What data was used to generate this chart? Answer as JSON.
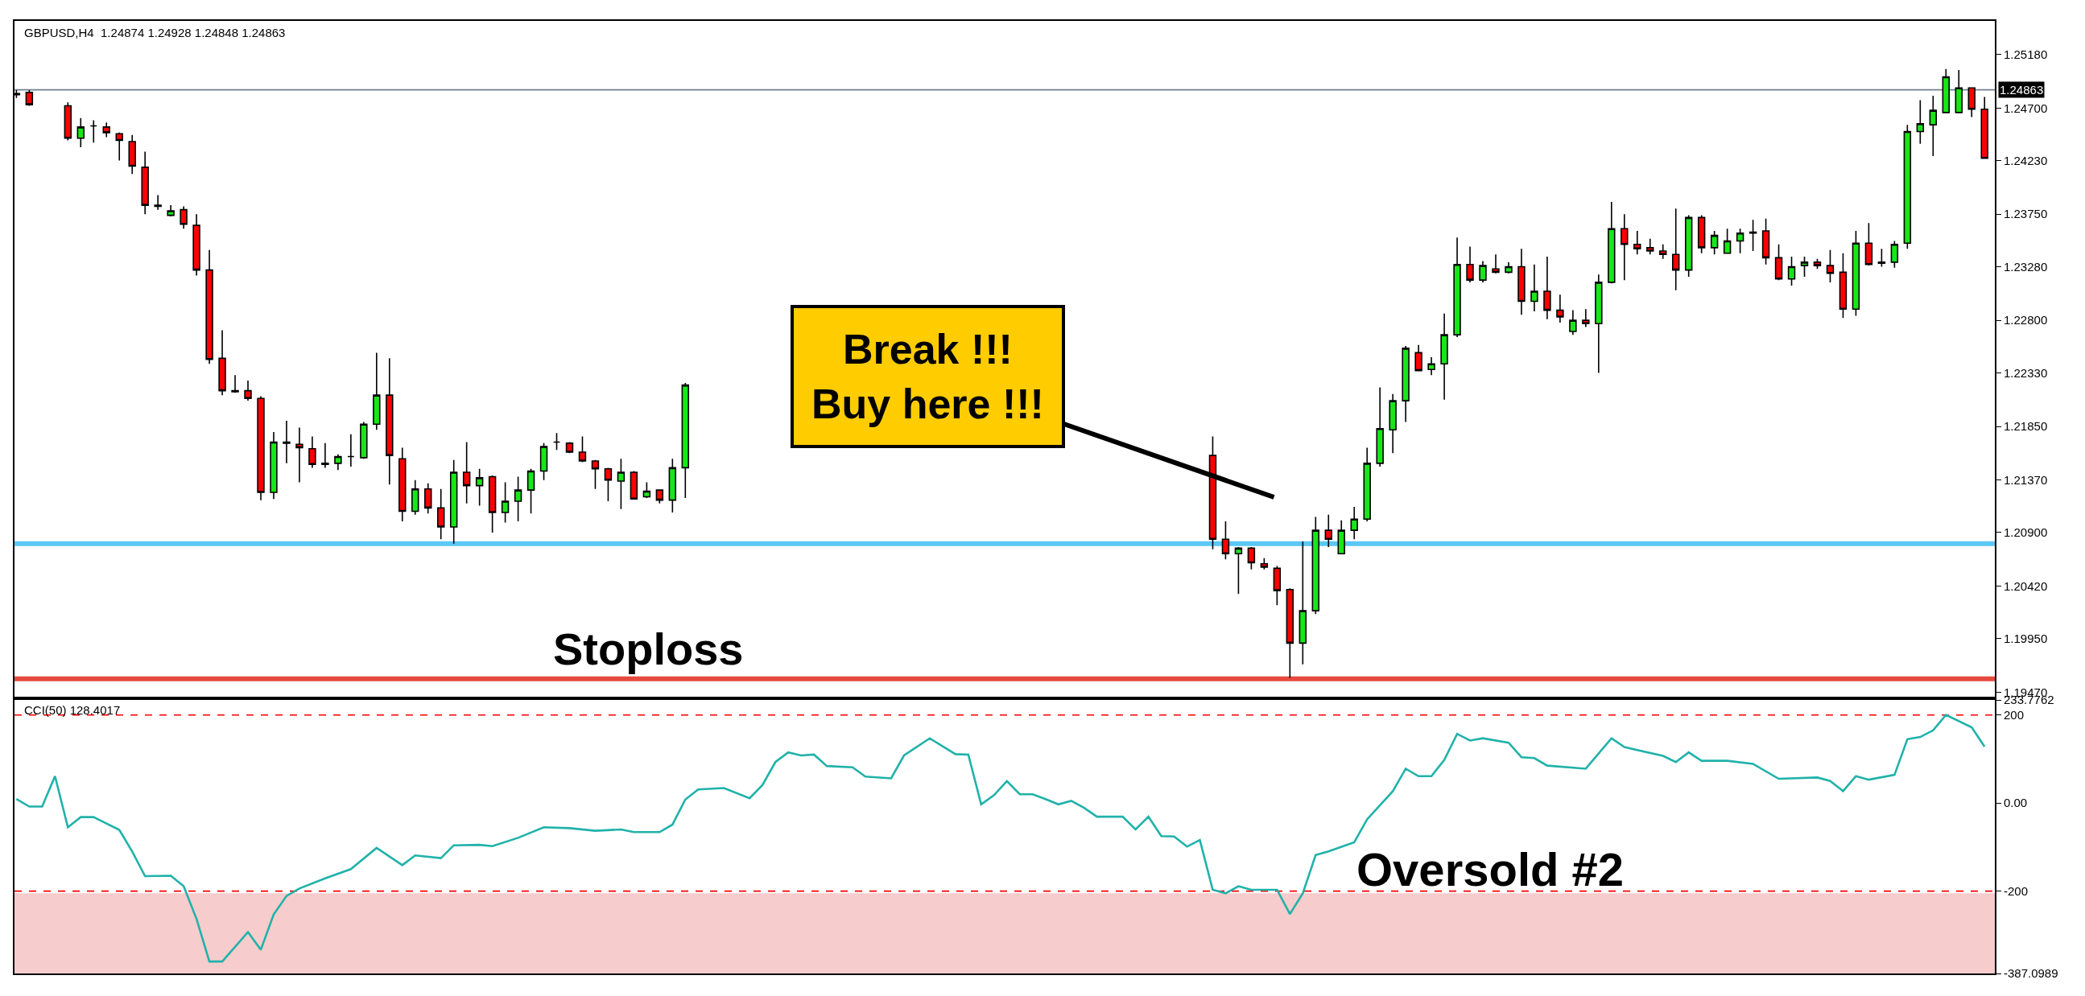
{
  "chart_data": [
    {
      "type": "candlestick",
      "title": "GBPUSD,H4  1.24874 1.24928 1.24848 1.24863",
      "categories": [
        null,
        null,
        null,
        null,
        null,
        null,
        null,
        null,
        null,
        null,
        null,
        null,
        null,
        null,
        null,
        null,
        null,
        null,
        null,
        null,
        null,
        null,
        null,
        null,
        null,
        null,
        null,
        null,
        null,
        null,
        null,
        null,
        null,
        null,
        null,
        null,
        null,
        null,
        null,
        null,
        null,
        null,
        null,
        null,
        null,
        null,
        null,
        null,
        null,
        null,
        null,
        null,
        null,
        null,
        null,
        null,
        null,
        null,
        null,
        null,
        null,
        null,
        null,
        null,
        null,
        null,
        null,
        null,
        null,
        null,
        null,
        null,
        null,
        null,
        null,
        null,
        null,
        null,
        null,
        null,
        null,
        null,
        null,
        null,
        null,
        null,
        null,
        null,
        null,
        null,
        null,
        null,
        null,
        null,
        null,
        null,
        null,
        null,
        null,
        null,
        null,
        null,
        null,
        null,
        null,
        null,
        null,
        null,
        null,
        null,
        null,
        null,
        null,
        null,
        null,
        null,
        null,
        null,
        null,
        null,
        null,
        null,
        null,
        null,
        null,
        null,
        null,
        null,
        null,
        null,
        null,
        null,
        null,
        null,
        null,
        null,
        null,
        null,
        null,
        null,
        null,
        null,
        null,
        null,
        null,
        null,
        null,
        null,
        null,
        null,
        null,
        null,
        null,
        null
      ],
      "ohlc": [
        [
          1.2483,
          1.2486,
          1.2479,
          1.2482
        ],
        [
          1.2484,
          1.2486,
          1.2472,
          1.2473
        ],
        null,
        null,
        [
          1.2472,
          1.2475,
          1.2441,
          1.2443
        ],
        [
          1.2443,
          1.2461,
          1.2435,
          1.2453
        ],
        [
          1.2454,
          1.2459,
          1.2439,
          1.2454
        ],
        [
          1.2453,
          1.2457,
          1.2444,
          1.2448
        ],
        [
          1.2447,
          1.2448,
          1.2423,
          1.2441
        ],
        [
          1.244,
          1.2446,
          1.2411,
          1.2418
        ],
        [
          1.2417,
          1.2431,
          1.2375,
          1.2383
        ],
        [
          1.2383,
          1.2392,
          1.2379,
          1.2382
        ],
        [
          1.2374,
          1.2383,
          1.2373,
          1.2378
        ],
        [
          1.2379,
          1.2382,
          1.2362,
          1.2366
        ],
        [
          1.2365,
          1.2375,
          1.232,
          1.2325
        ],
        [
          1.2325,
          1.2343,
          1.2241,
          1.2245
        ],
        [
          1.2246,
          1.2271,
          1.2213,
          1.2217
        ],
        [
          1.2217,
          1.2231,
          1.2215,
          1.2216
        ],
        [
          1.2217,
          1.2226,
          1.2208,
          1.221
        ],
        [
          1.221,
          1.2212,
          1.2119,
          1.2126
        ],
        [
          1.2126,
          1.218,
          1.212,
          1.2171
        ],
        [
          1.2171,
          1.219,
          1.2152,
          1.217
        ],
        [
          1.2169,
          1.2184,
          1.2135,
          1.2166
        ],
        [
          1.2165,
          1.2176,
          1.2148,
          1.2151
        ],
        [
          1.2152,
          1.217,
          1.2148,
          1.2151
        ],
        [
          1.2152,
          1.216,
          1.2146,
          1.2158
        ],
        [
          1.2158,
          1.2178,
          1.2149,
          1.2158
        ],
        [
          1.2157,
          1.2189,
          1.2156,
          1.2187
        ],
        [
          1.2187,
          1.2251,
          1.2182,
          1.2213
        ],
        [
          1.2213,
          1.2246,
          1.2133,
          1.2159
        ],
        [
          1.2156,
          1.2166,
          1.21,
          1.2109
        ],
        [
          1.2109,
          1.2137,
          1.2106,
          1.2129
        ],
        [
          1.2129,
          1.2134,
          1.2107,
          1.2112
        ],
        [
          1.2112,
          1.2129,
          1.2084,
          1.2095
        ],
        [
          1.2095,
          1.2155,
          1.208,
          1.2144
        ],
        [
          1.2144,
          1.2171,
          1.2116,
          1.2132
        ],
        [
          1.2132,
          1.2147,
          1.2114,
          1.2139
        ],
        [
          1.214,
          1.2141,
          1.209,
          1.2108
        ],
        [
          1.2108,
          1.2135,
          1.2099,
          1.2118
        ],
        [
          1.2118,
          1.214,
          1.21,
          1.2128
        ],
        [
          1.2128,
          1.2147,
          1.2107,
          1.2145
        ],
        [
          1.2145,
          1.217,
          1.2137,
          1.2167
        ],
        [
          1.2171,
          1.2179,
          1.2164,
          1.2171
        ],
        [
          1.217,
          1.2171,
          1.2161,
          1.2162
        ],
        [
          1.2162,
          1.2176,
          1.2153,
          1.2154
        ],
        [
          1.2154,
          1.2155,
          1.2129,
          1.2147
        ],
        [
          1.2147,
          1.2148,
          1.2118,
          1.2137
        ],
        [
          1.2136,
          1.2156,
          1.2111,
          1.2144
        ],
        [
          1.2144,
          1.2145,
          1.212,
          1.212
        ],
        [
          1.2122,
          1.2135,
          1.2121,
          1.2127
        ],
        [
          1.2128,
          1.2128,
          1.2116,
          1.2119
        ],
        [
          1.2119,
          1.2156,
          1.2108,
          1.2148
        ],
        [
          1.2148,
          1.2224,
          1.2121,
          1.2222
        ],
        null,
        null,
        null,
        null,
        null,
        null,
        null,
        null,
        null,
        null,
        null,
        null,
        null,
        null,
        null,
        null,
        null,
        null,
        null,
        null,
        null,
        null,
        null,
        null,
        null,
        null,
        null,
        null,
        null,
        null,
        null,
        null,
        null,
        null,
        null,
        null,
        null,
        null,
        null,
        null,
        [
          1.2159,
          1.2176,
          1.2075,
          1.2084
        ],
        [
          1.2084,
          1.21,
          1.2066,
          1.2071
        ],
        [
          1.2071,
          1.2077,
          1.2035,
          1.2076
        ],
        [
          1.2076,
          1.2077,
          1.2057,
          1.2063
        ],
        [
          1.2062,
          1.2067,
          1.2057,
          1.2059
        ],
        [
          1.2058,
          1.206,
          1.2025,
          1.2038
        ],
        [
          1.2039,
          1.204,
          1.196,
          1.1991
        ],
        [
          1.1991,
          1.2082,
          1.1972,
          1.202
        ],
        [
          1.202,
          1.2104,
          1.2017,
          1.2092
        ],
        [
          1.2092,
          1.2106,
          1.2077,
          1.2084
        ],
        [
          1.2071,
          1.2101,
          1.2071,
          1.2092
        ],
        [
          1.2092,
          1.2113,
          1.2084,
          1.2102
        ],
        [
          1.2102,
          1.2166,
          1.21,
          1.2152
        ],
        [
          1.2152,
          1.222,
          1.2149,
          1.2183
        ],
        [
          1.2182,
          1.2214,
          1.2161,
          1.2208
        ],
        [
          1.2208,
          1.2257,
          1.2189,
          1.2255
        ],
        [
          1.2251,
          1.2258,
          1.2235,
          1.2235
        ],
        [
          1.2236,
          1.2247,
          1.2231,
          1.2241
        ],
        [
          1.2241,
          1.2286,
          1.2209,
          1.2267
        ],
        [
          1.2267,
          1.2354,
          1.2265,
          1.233
        ],
        [
          1.233,
          1.2346,
          1.2314,
          1.2316
        ],
        [
          1.2316,
          1.2333,
          1.2314,
          1.2329
        ],
        [
          1.2326,
          1.2339,
          1.2322,
          1.2323
        ],
        [
          1.2323,
          1.2332,
          1.2322,
          1.2328
        ],
        [
          1.2328,
          1.2344,
          1.2285,
          1.2297
        ],
        [
          1.2297,
          1.233,
          1.2288,
          1.2306
        ],
        [
          1.2306,
          1.2337,
          1.2281,
          1.2289
        ],
        [
          1.2289,
          1.2303,
          1.2278,
          1.2283
        ],
        [
          1.227,
          1.2289,
          1.2267,
          1.228
        ],
        [
          1.228,
          1.229,
          1.2274,
          1.2277
        ],
        [
          1.2277,
          1.2321,
          1.2233,
          1.2314
        ],
        [
          1.2314,
          1.2386,
          1.2313,
          1.2362
        ],
        [
          1.2362,
          1.2375,
          1.2316,
          1.2348
        ],
        [
          1.2348,
          1.236,
          1.2339,
          1.2344
        ],
        [
          1.2345,
          1.2353,
          1.2339,
          1.2342
        ],
        [
          1.2342,
          1.2348,
          1.2335,
          1.2339
        ],
        [
          1.2339,
          1.238,
          1.2307,
          1.2325
        ],
        [
          1.2325,
          1.2374,
          1.2319,
          1.2372
        ],
        [
          1.2372,
          1.2374,
          1.234,
          1.2345
        ],
        [
          1.2345,
          1.236,
          1.2339,
          1.2356
        ],
        [
          1.234,
          1.2362,
          1.234,
          1.2351
        ],
        [
          1.2351,
          1.2362,
          1.234,
          1.2358
        ],
        [
          1.2359,
          1.237,
          1.2342,
          1.2358
        ],
        [
          1.236,
          1.2371,
          1.233,
          1.2336
        ],
        [
          1.2336,
          1.2348,
          1.2316,
          1.2317
        ],
        [
          1.2317,
          1.2337,
          1.2311,
          1.2328
        ],
        [
          1.2329,
          1.2337,
          1.2319,
          1.2332
        ],
        [
          1.2332,
          1.2335,
          1.2326,
          1.2329
        ],
        [
          1.2329,
          1.2343,
          1.2314,
          1.2322
        ],
        [
          1.2323,
          1.234,
          1.2282,
          1.229
        ],
        [
          1.229,
          1.236,
          1.2284,
          1.2349
        ],
        [
          1.2349,
          1.2367,
          1.2329,
          1.233
        ],
        [
          1.2332,
          1.2344,
          1.2328,
          1.2331
        ],
        [
          1.2332,
          1.2351,
          1.2327,
          1.2348
        ],
        [
          1.2349,
          1.2455,
          1.2344,
          1.2449
        ],
        [
          1.2449,
          1.2477,
          1.2438,
          1.2456
        ],
        [
          1.2455,
          1.2481,
          1.2427,
          1.2468
        ],
        [
          1.2466,
          1.2505,
          1.2466,
          1.2498
        ],
        [
          1.2466,
          1.2504,
          1.2466,
          1.2488
        ],
        [
          1.2488,
          1.2488,
          1.2462,
          1.2469
        ],
        [
          1.2469,
          1.248,
          1.2425,
          1.2425
        ]
      ],
      "ylim": [
        1.1943,
        1.2548
      ],
      "yticks": [
        {
          "value": 1.2518,
          "label": "1.25180"
        },
        {
          "value": 1.247,
          "label": "1.24700"
        },
        {
          "value": 1.2423,
          "label": "1.24230"
        },
        {
          "value": 1.2375,
          "label": "1.23750"
        },
        {
          "value": 1.2328,
          "label": "1.23280"
        },
        {
          "value": 1.228,
          "label": "1.22800"
        },
        {
          "value": 1.2233,
          "label": "1.22330"
        },
        {
          "value": 1.2185,
          "label": "1.21850"
        },
        {
          "value": 1.2137,
          "label": "1.21370"
        },
        {
          "value": 1.209,
          "label": "1.20900"
        },
        {
          "value": 1.2042,
          "label": "1.20420"
        },
        {
          "value": 1.1995,
          "label": "1.19950"
        },
        {
          "value": 1.1947,
          "label": "1.19470"
        }
      ],
      "ref_lines": [
        {
          "axis": "y",
          "value": 1.24863,
          "label": "1.24863",
          "color": "#708090"
        },
        {
          "axis": "y",
          "value": 1.208,
          "color": "#5bc8f5"
        },
        {
          "axis": "y",
          "value": 1.1959,
          "label": "Stoploss",
          "color": "#e8493f"
        }
      ],
      "annotations": [
        "Break !!!\nBuy here !!!"
      ]
    },
    {
      "type": "line",
      "title": "CCI(50) 128.4017",
      "categories": [
        null,
        null,
        null,
        null,
        null,
        null,
        null,
        null,
        null,
        null,
        null,
        null,
        null,
        null,
        null,
        null,
        null,
        null,
        null,
        null,
        null,
        null,
        null,
        null,
        null,
        null,
        null,
        null,
        null,
        null,
        null,
        null,
        null,
        null,
        null,
        null,
        null,
        null,
        null,
        null,
        null,
        null,
        null,
        null,
        null,
        null,
        null,
        null,
        null,
        null,
        null,
        null,
        null,
        null,
        null,
        null,
        null,
        null,
        null,
        null,
        null,
        null,
        null,
        null,
        null,
        null,
        null,
        null,
        null,
        null,
        null,
        null,
        null,
        null,
        null,
        null,
        null,
        null,
        null,
        null,
        null,
        null,
        null,
        null,
        null,
        null,
        null,
        null,
        null,
        null,
        null,
        null,
        null,
        null,
        null,
        null,
        null,
        null,
        null,
        null,
        null,
        null,
        null,
        null,
        null,
        null,
        null,
        null,
        null,
        null,
        null,
        null,
        null,
        null,
        null,
        null,
        null,
        null,
        null,
        null,
        null,
        null,
        null,
        null,
        null,
        null,
        null,
        null,
        null,
        null,
        null,
        null,
        null,
        null,
        null,
        null,
        null,
        null,
        null,
        null,
        null,
        null,
        null,
        null,
        null,
        null,
        null,
        null,
        null,
        null,
        null,
        null,
        null,
        null
      ],
      "series": [
        {
          "color": "#20b2aa",
          "values": [
            9,
            -8,
            -8,
            61,
            -55,
            -32,
            -32,
            null,
            -61,
            -110,
            -166,
            null,
            -165,
            -189,
            -263,
            -360,
            -360,
            null,
            -293,
            -333,
            -253,
            -211,
            -194,
            null,
            -171,
            null,
            -150,
            null,
            -102,
            null,
            -141,
            -119,
            null,
            -125,
            -96,
            null,
            -95,
            -98,
            null,
            -79,
            null,
            -55,
            null,
            -57,
            null,
            -63,
            null,
            -60,
            -66,
            null,
            -66,
            -49,
            8,
            31,
            null,
            34,
            null,
            11,
            41,
            93,
            115,
            108,
            110,
            84,
            null,
            81,
            60,
            null,
            56,
            108,
            null,
            147,
            null,
            111,
            110,
            -3,
            18,
            50,
            20,
            20,
            9,
            -3,
            5,
            -11,
            -31,
            null,
            -31,
            -60,
            -31,
            -75,
            -76,
            -99,
            -84,
            -197,
            -205,
            -189,
            -197,
            null,
            -197,
            -252,
            -205,
            -118,
            -110,
            null,
            -89,
            -37,
            null,
            27,
            78,
            61,
            61,
            98,
            157,
            142,
            147,
            null,
            137,
            104,
            102,
            85,
            null,
            null,
            78,
            null,
            147,
            127,
            null,
            null,
            107,
            93,
            115,
            96,
            null,
            96,
            null,
            89,
            null,
            55,
            null,
            null,
            58,
            50,
            27,
            61,
            53,
            null,
            64,
            145,
            150,
            165,
            200,
            null,
            172,
            128
          ]
        }
      ],
      "ylim": [
        -387.0989,
        233.7762
      ],
      "yticks": [
        233.7762,
        200,
        {
          "value": 0,
          "label": "0.00"
        },
        -200,
        -387.0989
      ],
      "ref_lines": [
        {
          "axis": "y",
          "value": 200,
          "color": "#ff0000",
          "line_style": "dashed"
        },
        {
          "axis": "y",
          "value": -200,
          "color": "#ff0000",
          "line_style": "dashed"
        }
      ],
      "bands": [
        {
          "axis": "y",
          "from": -387.0989,
          "to": -205,
          "color": "#f7cccc"
        }
      ],
      "annotations": [
        "Oversold #2"
      ]
    }
  ]
}
